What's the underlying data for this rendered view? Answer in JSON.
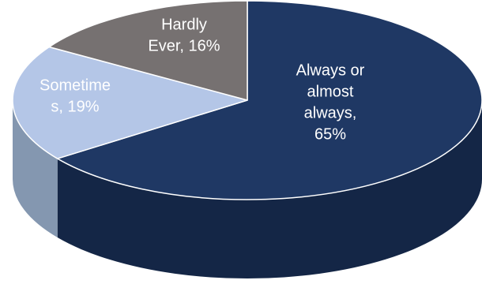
{
  "chart_data": {
    "type": "pie",
    "style": "3d",
    "title": "",
    "slices": [
      {
        "name": "Always or almost always",
        "value": 65,
        "label_lines": [
          "Always or",
          "almost",
          "always,",
          "65%"
        ],
        "color": "#1f3864",
        "side_color": "#142646",
        "text_color": "#ffffff"
      },
      {
        "name": "Sometimes",
        "value": 19,
        "label_lines": [
          "Sometime",
          "s, 19%"
        ],
        "color": "#b4c6e7",
        "side_color": "#8497b0",
        "text_color": "#ffffff"
      },
      {
        "name": "Hardly Ever",
        "value": 16,
        "label_lines": [
          "Hardly",
          "Ever, 16%"
        ],
        "color": "#767171",
        "side_color": "#595555",
        "text_color": "#ffffff"
      }
    ]
  }
}
